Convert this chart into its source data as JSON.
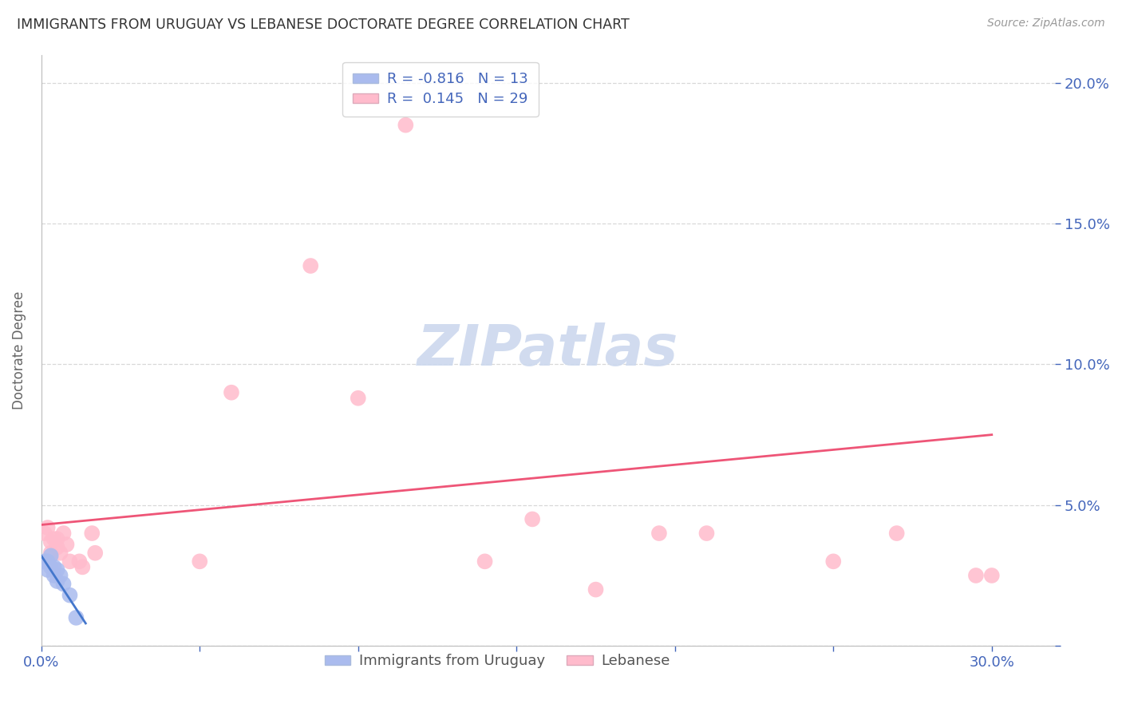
{
  "title": "IMMIGRANTS FROM URUGUAY VS LEBANESE DOCTORATE DEGREE CORRELATION CHART",
  "source": "Source: ZipAtlas.com",
  "ylabel": "Doctorate Degree",
  "xlim": [
    0.0,
    0.32
  ],
  "ylim": [
    0.0,
    0.21
  ],
  "xticks": [
    0.0,
    0.05,
    0.1,
    0.15,
    0.2,
    0.25,
    0.3
  ],
  "xtick_labels": [
    "0.0%",
    "",
    "",
    "",
    "",
    "",
    "30.0%"
  ],
  "yticks": [
    0.0,
    0.05,
    0.1,
    0.15,
    0.2
  ],
  "ytick_labels_right": [
    "",
    "5.0%",
    "10.0%",
    "15.0%",
    "20.0%"
  ],
  "background_color": "#ffffff",
  "grid_color": "#d8d8d8",
  "title_color": "#333333",
  "axis_label_color": "#4466bb",
  "blue_scatter_color": "#aabbee",
  "pink_scatter_color": "#ffbbcc",
  "blue_line_color": "#4477cc",
  "pink_line_color": "#ee5577",
  "uruguay_R": -0.816,
  "uruguay_N": 13,
  "lebanese_R": 0.145,
  "lebanese_N": 29,
  "uruguay_points_x": [
    0.001,
    0.002,
    0.002,
    0.003,
    0.003,
    0.004,
    0.004,
    0.005,
    0.005,
    0.006,
    0.007,
    0.009,
    0.011
  ],
  "uruguay_points_y": [
    0.03,
    0.03,
    0.027,
    0.032,
    0.028,
    0.028,
    0.025,
    0.027,
    0.023,
    0.025,
    0.022,
    0.018,
    0.01
  ],
  "lebanese_points_x": [
    0.001,
    0.002,
    0.003,
    0.003,
    0.004,
    0.005,
    0.005,
    0.006,
    0.007,
    0.008,
    0.009,
    0.012,
    0.013,
    0.016,
    0.017,
    0.05,
    0.06,
    0.085,
    0.1,
    0.115,
    0.14,
    0.155,
    0.175,
    0.195,
    0.21,
    0.25,
    0.27,
    0.295,
    0.3
  ],
  "lebanese_points_y": [
    0.04,
    0.042,
    0.037,
    0.033,
    0.038,
    0.035,
    0.038,
    0.033,
    0.04,
    0.036,
    0.03,
    0.03,
    0.028,
    0.04,
    0.033,
    0.03,
    0.09,
    0.135,
    0.088,
    0.185,
    0.03,
    0.045,
    0.02,
    0.04,
    0.04,
    0.03,
    0.04,
    0.025,
    0.025
  ],
  "uru_line_x": [
    0.0,
    0.014
  ],
  "uru_line_y": [
    0.032,
    0.008
  ],
  "leb_line_x": [
    0.0,
    0.3
  ],
  "leb_line_y": [
    0.043,
    0.075
  ],
  "watermark_text": "ZIPatlas",
  "watermark_color": "#ccd8ee",
  "legend_label_uru": "Immigrants from Uruguay",
  "legend_label_leb": "Lebanese"
}
